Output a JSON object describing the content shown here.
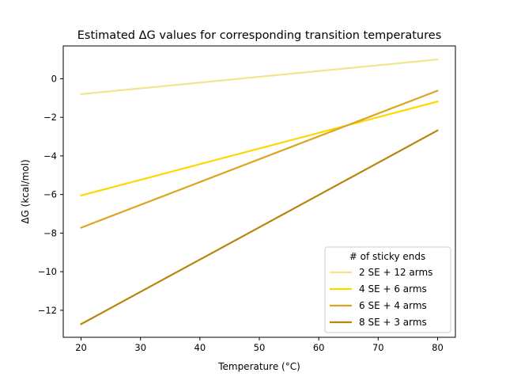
{
  "chart_data": {
    "type": "line",
    "title": "Estimated ΔG values for corresponding transition temperatures",
    "xlabel": "Temperature (°C)",
    "ylabel": "ΔG (kcal/mol)",
    "xlim": [
      17,
      83
    ],
    "ylim": [
      -13.4,
      1.7
    ],
    "x_ticks": [
      20,
      30,
      40,
      50,
      60,
      70,
      80
    ],
    "y_ticks": [
      0,
      -2,
      -4,
      -6,
      -8,
      -10,
      -12
    ],
    "grid": false,
    "legend": {
      "title": "# of sticky ends",
      "placement": "lower right"
    },
    "series": [
      {
        "name": "2 SE + 12 arms",
        "color": "#f0e68c",
        "x": [
          20,
          80
        ],
        "y": [
          -0.8,
          1.0
        ]
      },
      {
        "name": "4 SE + 6 arms",
        "color": "#ffd700",
        "x": [
          20,
          80
        ],
        "y": [
          -6.05,
          -1.18
        ]
      },
      {
        "name": "6 SE + 4 arms",
        "color": "#daa520",
        "x": [
          20,
          80
        ],
        "y": [
          -7.72,
          -0.62
        ]
      },
      {
        "name": "8 SE + 3 arms",
        "color": "#b8860b",
        "x": [
          20,
          80
        ],
        "y": [
          -12.72,
          -2.68
        ]
      }
    ]
  }
}
